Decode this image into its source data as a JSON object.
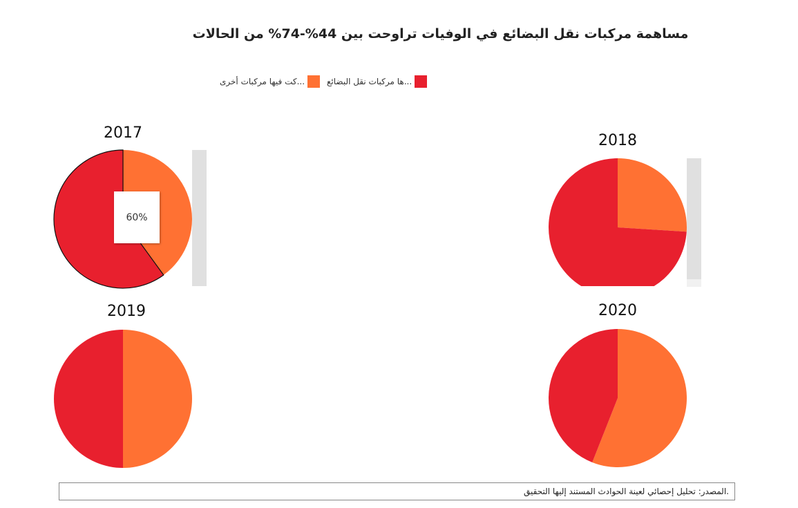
{
  "title": "مساهمة مركبات نقل البضائع في الوفيات تراوحت بين 44%-74% من الحالات",
  "legend": [
    {
      "label": "...ها مركبات نقل البضائع",
      "color": "#e8202e"
    },
    {
      "label": "...كت فيها مركبات أخرى",
      "color": "#ff7133"
    }
  ],
  "colors": {
    "goods": "#e8202e",
    "other": "#ff7133",
    "scroll": "#e0e0e0"
  },
  "tooltip": {
    "text": "60%"
  },
  "chart_data": {
    "type": "pie",
    "title": "مساهمة مركبات نقل البضائع في الوفيات تراوحت بين 44%-74% من الحالات",
    "series_labels": [
      "...ها مركبات نقل البضائع",
      "...كت فيها مركبات أخرى"
    ],
    "pies": [
      {
        "year": "2017",
        "values": [
          60,
          40
        ]
      },
      {
        "year": "2018",
        "values": [
          74,
          26
        ]
      },
      {
        "year": "2019",
        "values": [
          50,
          50
        ]
      },
      {
        "year": "2020",
        "values": [
          44,
          56
        ]
      }
    ]
  },
  "source": ".المصدر: تحليل إحصائي لعينة الحوادث المستند إليها التحقيق"
}
